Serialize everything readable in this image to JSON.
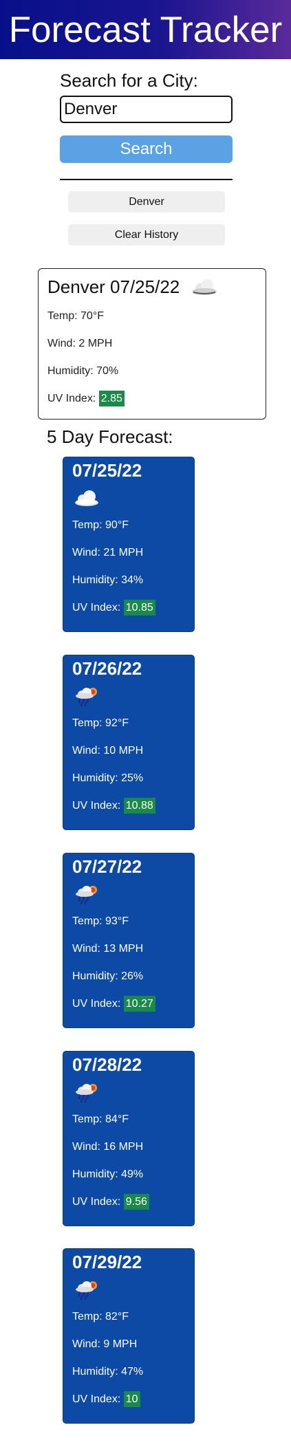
{
  "header": {
    "title": "Forecast Tracker"
  },
  "search": {
    "label": "Search for a City:",
    "value": "Denver",
    "button_label": "Search"
  },
  "history": {
    "items": [
      "Denver"
    ],
    "clear_label": "Clear History"
  },
  "current": {
    "title": "Denver 07/25/22",
    "icon": "cloud-icon",
    "temp": "Temp: 70°F",
    "wind": "Wind: 2 MPH",
    "humidity": "Humidity: 70%",
    "uv_label": "UV Index:",
    "uv_value": "2.85"
  },
  "forecast": {
    "heading": "5 Day Forecast:",
    "days": [
      {
        "date": "07/25/22",
        "icon": "cloud-icon",
        "temp": "Temp: 90°F",
        "wind": "Wind: 21 MPH",
        "humidity": "Humidity: 34%",
        "uv_label": "UV Index:",
        "uv_value": "10.85"
      },
      {
        "date": "07/26/22",
        "icon": "rain-sun-icon",
        "temp": "Temp: 92°F",
        "wind": "Wind: 10 MPH",
        "humidity": "Humidity: 25%",
        "uv_label": "UV Index:",
        "uv_value": "10.88"
      },
      {
        "date": "07/27/22",
        "icon": "rain-sun-icon",
        "temp": "Temp: 93°F",
        "wind": "Wind: 13 MPH",
        "humidity": "Humidity: 26%",
        "uv_label": "UV Index:",
        "uv_value": "10.27"
      },
      {
        "date": "07/28/22",
        "icon": "rain-sun-icon",
        "temp": "Temp: 84°F",
        "wind": "Wind: 16 MPH",
        "humidity": "Humidity: 49%",
        "uv_label": "UV Index:",
        "uv_value": "9.56"
      },
      {
        "date": "07/29/22",
        "icon": "rain-sun-icon",
        "temp": "Temp: 82°F",
        "wind": "Wind: 9 MPH",
        "humidity": "Humidity: 47%",
        "uv_label": "UV Index:",
        "uv_value": "10"
      }
    ]
  },
  "colors": {
    "header_start": "#07108a",
    "header_end": "#5a2a9a",
    "search_button": "#5aa2e4",
    "card_blue": "#0d4aa6",
    "uv_green": "#1a8a4a"
  }
}
